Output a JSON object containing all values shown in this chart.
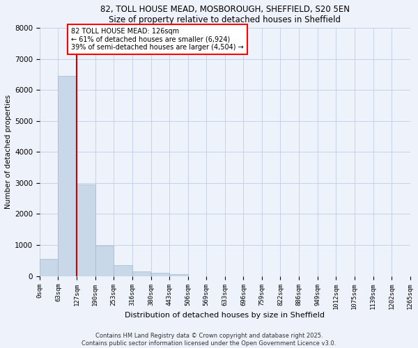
{
  "title_line1": "82, TOLL HOUSE MEAD, MOSBOROUGH, SHEFFIELD, S20 5EN",
  "title_line2": "Size of property relative to detached houses in Sheffield",
  "xlabel": "Distribution of detached houses by size in Sheffield",
  "ylabel": "Number of detached properties",
  "bar_values": [
    550,
    6450,
    2950,
    975,
    350,
    150,
    100,
    60,
    0,
    0,
    0,
    0,
    0,
    0,
    0,
    0,
    0,
    0,
    0,
    0
  ],
  "bin_edges": [
    0,
    63,
    127,
    190,
    253,
    316,
    380,
    443,
    506,
    569,
    633,
    696,
    759,
    822,
    886,
    949,
    1012,
    1075,
    1139,
    1202,
    1265
  ],
  "bin_labels": [
    "0sqm",
    "63sqm",
    "127sqm",
    "190sqm",
    "253sqm",
    "316sqm",
    "380sqm",
    "443sqm",
    "506sqm",
    "569sqm",
    "633sqm",
    "696sqm",
    "759sqm",
    "822sqm",
    "886sqm",
    "949sqm",
    "1012sqm",
    "1075sqm",
    "1139sqm",
    "1202sqm",
    "1265sqm"
  ],
  "bar_color": "#c8d8e8",
  "bar_edge_color": "#a0b8d0",
  "red_line_x": 127,
  "annotation_text": "82 TOLL HOUSE MEAD: 126sqm\n← 61% of detached houses are smaller (6,924)\n39% of semi-detached houses are larger (4,504) →",
  "annotation_box_color": "white",
  "annotation_border_color": "red",
  "ylim": [
    0,
    8000
  ],
  "yticks": [
    0,
    1000,
    2000,
    3000,
    4000,
    5000,
    6000,
    7000,
    8000
  ],
  "red_line_color": "#cc0000",
  "footer_line1": "Contains HM Land Registry data © Crown copyright and database right 2025.",
  "footer_line2": "Contains public sector information licensed under the Open Government Licence v3.0.",
  "bg_color": "#eef2fa",
  "grid_color": "#c8d0e8"
}
